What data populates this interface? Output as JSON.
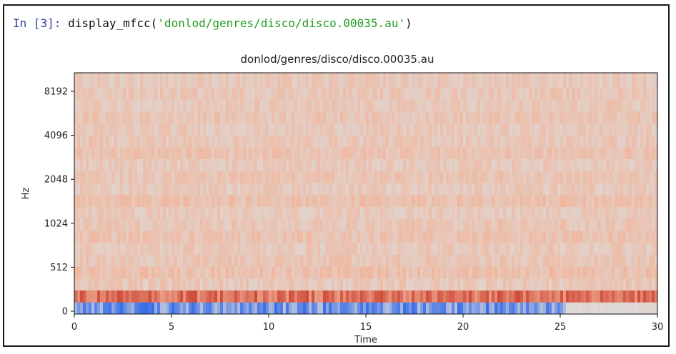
{
  "cell": {
    "prompt": "In [3]:",
    "code_func": " display_mfcc(",
    "code_arg": "'donlod/genres/disco/disco.00035.au'",
    "code_close": ")"
  },
  "chart_data": {
    "type": "heatmap",
    "title": "donlod/genres/disco/disco.00035.au",
    "xlabel": "Time",
    "ylabel": "Hz",
    "xlim": [
      0,
      30
    ],
    "x_ticks": [
      "0",
      "5",
      "10",
      "15",
      "20",
      "25",
      "30"
    ],
    "y_ticks": [
      "0",
      "512",
      "1024",
      "2048",
      "4096",
      "8192"
    ],
    "y_scale": "mel",
    "colormap": "coolwarm",
    "colors": {
      "low": "#3b6fe8",
      "mid": "#dcdcdc",
      "warm": "#f2b49a",
      "high": "#c93a2a"
    },
    "bands": [
      {
        "level": 0.1,
        "variance": 0.12,
        "blue_until": 25.3
      },
      {
        "level": 0.86,
        "variance": 0.1
      },
      {
        "level": 0.6,
        "variance": 0.06
      },
      {
        "level": 0.64,
        "variance": 0.06
      },
      {
        "level": 0.62,
        "variance": 0.05
      },
      {
        "level": 0.6,
        "variance": 0.05
      },
      {
        "level": 0.63,
        "variance": 0.05
      },
      {
        "level": 0.61,
        "variance": 0.05
      },
      {
        "level": 0.6,
        "variance": 0.05
      },
      {
        "level": 0.64,
        "variance": 0.05
      },
      {
        "level": 0.6,
        "variance": 0.05
      },
      {
        "level": 0.62,
        "variance": 0.05
      },
      {
        "level": 0.6,
        "variance": 0.05
      },
      {
        "level": 0.63,
        "variance": 0.05
      },
      {
        "level": 0.61,
        "variance": 0.05
      },
      {
        "level": 0.6,
        "variance": 0.05
      },
      {
        "level": 0.62,
        "variance": 0.05
      },
      {
        "level": 0.6,
        "variance": 0.05
      },
      {
        "level": 0.61,
        "variance": 0.05
      },
      {
        "level": 0.6,
        "variance": 0.05
      }
    ]
  }
}
